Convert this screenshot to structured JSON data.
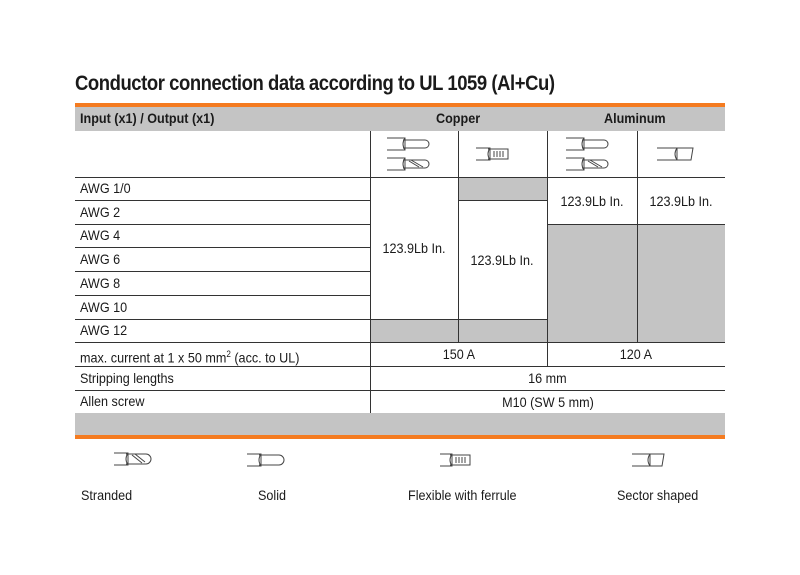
{
  "title": "Conductor connection data according to UL 1059 (Al+Cu)",
  "header": {
    "col0": "Input (x1) / Output (x1)",
    "copper": "Copper",
    "aluminum": "Aluminum"
  },
  "rows": [
    "AWG 1/0",
    "AWG 2",
    "AWG 4",
    "AWG 6",
    "AWG 8",
    "AWG 10",
    "AWG 12"
  ],
  "torque": {
    "copper_stranded_solid": "123.9Lb In.",
    "copper_ferrule": "123.9Lb In.",
    "aluminum_stranded_solid": "123.9Lb In.",
    "aluminum_sector": "123.9Lb In."
  },
  "current": {
    "label": "max. current at 1 x 50 mm",
    "sup": "2",
    "suffix": " (acc. to UL)",
    "copper": "150 A",
    "aluminum": "120 A"
  },
  "stripping": {
    "label": "Stripping lengths",
    "value": "16 mm"
  },
  "screw": {
    "label": "Allen screw",
    "value": "M10 (SW 5 mm)"
  },
  "legend": [
    "Stranded",
    "Solid",
    "Flexible with ferrule",
    "Sector shaped"
  ],
  "colors": {
    "accent": "#f47b20",
    "gray": "#c4c4c4"
  }
}
